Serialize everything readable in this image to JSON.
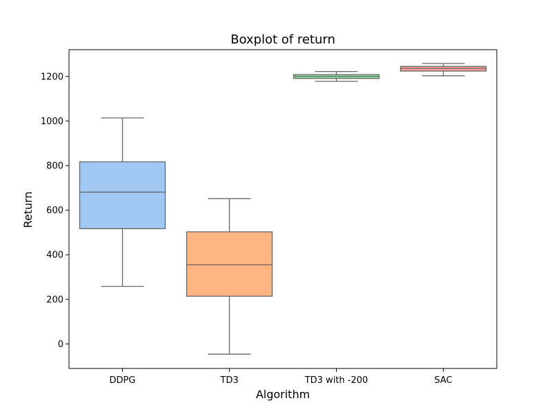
{
  "chart_data": {
    "type": "boxplot",
    "title": "Boxplot of return",
    "xlabel": "Algorithm",
    "ylabel": "Return",
    "ylim": [
      -110,
      1320
    ],
    "yticks": [
      0,
      200,
      400,
      600,
      800,
      1000,
      1200
    ],
    "grid": false,
    "categories": [
      "DDPG",
      "TD3",
      "TD3 with -200",
      "SAC"
    ],
    "boxes": [
      {
        "category": "DDPG",
        "whisker_low": 258,
        "q1": 517,
        "median": 681,
        "q3": 817,
        "whisker_high": 1014,
        "color": "#a1c9f4"
      },
      {
        "category": "TD3",
        "whisker_low": -46,
        "q1": 214,
        "median": 355,
        "q3": 503,
        "whisker_high": 652,
        "color": "#ffb482"
      },
      {
        "category": "TD3 with -200",
        "whisker_low": 1178,
        "q1": 1191,
        "median": 1200,
        "q3": 1208,
        "whisker_high": 1222,
        "color": "#8de5a1"
      },
      {
        "category": "SAC",
        "whisker_low": 1203,
        "q1": 1224,
        "median": 1236,
        "q3": 1245,
        "whisker_high": 1258,
        "color": "#ff9f9b"
      }
    ]
  }
}
